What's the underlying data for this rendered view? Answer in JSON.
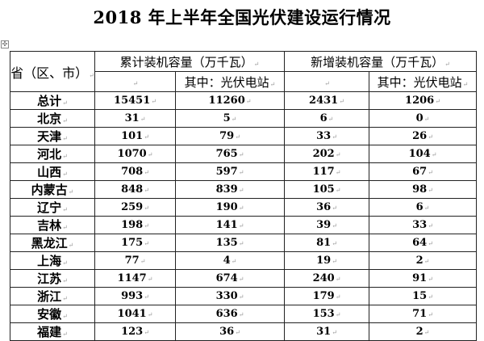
{
  "title": "2018 年上半年全国光伏建设运行情况",
  "table": {
    "header": {
      "province": "省（区、市）",
      "cumulative": "累计装机容量（万千瓦）",
      "cumulative_sub": "其中：光伏电站",
      "new": "新增装机容量（万千瓦）",
      "new_sub": "其中：光伏电站"
    },
    "rows": [
      {
        "name": "总计",
        "cum": "15451",
        "cum_station": "11260",
        "new": "2431",
        "new_station": "1206"
      },
      {
        "name": "北京",
        "cum": "31",
        "cum_station": "5",
        "new": "6",
        "new_station": "0"
      },
      {
        "name": "天津",
        "cum": "101",
        "cum_station": "79",
        "new": "33",
        "new_station": "26"
      },
      {
        "name": "河北",
        "cum": "1070",
        "cum_station": "765",
        "new": "202",
        "new_station": "104"
      },
      {
        "name": "山西",
        "cum": "708",
        "cum_station": "597",
        "new": "117",
        "new_station": "67"
      },
      {
        "name": "内蒙古",
        "cum": "848",
        "cum_station": "839",
        "new": "105",
        "new_station": "98"
      },
      {
        "name": "辽宁",
        "cum": "259",
        "cum_station": "190",
        "new": "36",
        "new_station": "6"
      },
      {
        "name": "吉林",
        "cum": "198",
        "cum_station": "141",
        "new": "39",
        "new_station": "33"
      },
      {
        "name": "黑龙江",
        "cum": "175",
        "cum_station": "135",
        "new": "81",
        "new_station": "64"
      },
      {
        "name": "上海",
        "cum": "77",
        "cum_station": "4",
        "new": "19",
        "new_station": "2"
      },
      {
        "name": "江苏",
        "cum": "1147",
        "cum_station": "674",
        "new": "240",
        "new_station": "91"
      },
      {
        "name": "浙江",
        "cum": "993",
        "cum_station": "330",
        "new": "179",
        "new_station": "15"
      },
      {
        "name": "安徽",
        "cum": "1041",
        "cum_station": "636",
        "new": "153",
        "new_station": "71"
      },
      {
        "name": "福建",
        "cum": "123",
        "cum_station": "36",
        "new": "31",
        "new_station": "2"
      }
    ]
  }
}
